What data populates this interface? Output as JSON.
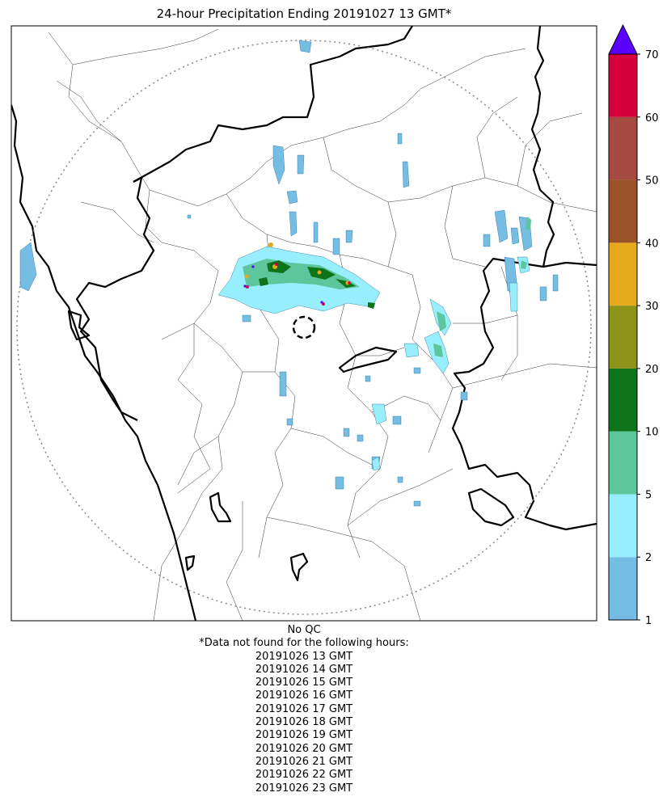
{
  "title": "24-hour Precipitation Ending 20191027 13 GMT*",
  "colorbar": {
    "ticks": [
      "1",
      "2",
      "5",
      "10",
      "20",
      "30",
      "40",
      "50",
      "60",
      "70"
    ],
    "colors": [
      "#76bde4",
      "#97eefc",
      "#5ec69c",
      "#0e7419",
      "#8b9418",
      "#e6a91e",
      "#9a5228",
      "#a54a41",
      "#d6003f"
    ],
    "extend_color": "#5b00ff"
  },
  "footer": {
    "qc": "No QC",
    "missing_heading": "*Data not found for the following hours:",
    "missing_hours": [
      "20191026 13 GMT",
      "20191026 14 GMT",
      "20191026 15 GMT",
      "20191026 16 GMT",
      "20191026 17 GMT",
      "20191026 18 GMT",
      "20191026 19 GMT",
      "20191026 20 GMT",
      "20191026 21 GMT",
      "20191026 22 GMT",
      "20191026 23 GMT"
    ]
  }
}
